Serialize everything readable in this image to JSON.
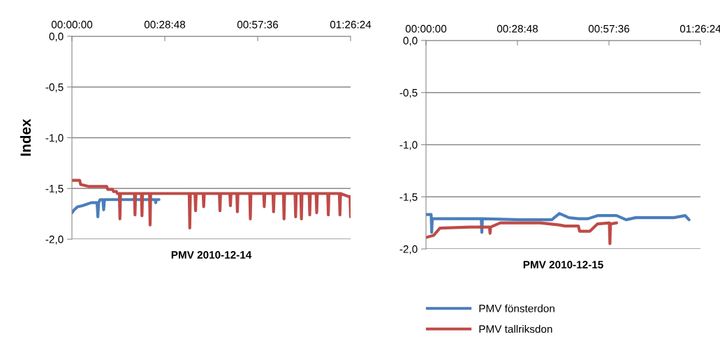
{
  "chart_data": [
    {
      "type": "line",
      "xlabel": "PMV 2010-12-14",
      "ylabel": "Index",
      "xlim": [
        0,
        1.44
      ],
      "ylim": [
        -2.0,
        0.0
      ],
      "xticks": [
        {
          "value": 0,
          "label": "00:00:00"
        },
        {
          "value": 0.48,
          "label": "00:28:48"
        },
        {
          "value": 0.96,
          "label": "00:57:36"
        },
        {
          "value": 1.44,
          "label": "01:26:24"
        }
      ],
      "yticks": [
        {
          "value": 0,
          "label": "0,0"
        },
        {
          "value": -0.5,
          "label": "-0,5"
        },
        {
          "value": -1.0,
          "label": "-1,0"
        },
        {
          "value": -1.5,
          "label": "-1,5"
        },
        {
          "value": -2.0,
          "label": "-2,0"
        }
      ],
      "grid": "y",
      "legend": false,
      "marker": "none",
      "line_style": "solid",
      "series": [
        {
          "color": "#4a7ebb",
          "x": [
            0,
            0.012,
            0.03,
            0.054,
            0.1,
            0.13,
            0.134,
            0.138,
            0.146,
            0.16,
            0.164,
            0.168,
            0.2,
            0.3,
            0.43,
            0.433,
            0.436,
            0.45
          ],
          "values": [
            -1.74,
            -1.71,
            -1.68,
            -1.67,
            -1.64,
            -1.64,
            -1.78,
            -1.64,
            -1.61,
            -1.61,
            -1.71,
            -1.61,
            -1.61,
            -1.61,
            -1.61,
            -1.64,
            -1.61,
            -1.61
          ]
        },
        {
          "color": "#be4b48",
          "x": [
            0,
            0.04,
            0.045,
            0.085,
            0.18,
            0.185,
            0.21,
            0.215,
            0.23,
            0.235,
            0.245,
            0.248,
            0.251,
            0.323,
            0.326,
            0.329,
            0.359,
            0.362,
            0.365,
            0.401,
            0.404,
            0.407,
            0.606,
            0.609,
            0.612,
            0.636,
            0.639,
            0.642,
            0.678,
            0.681,
            0.684,
            0.762,
            0.765,
            0.768,
            0.816,
            0.819,
            0.822,
            0.852,
            0.855,
            0.858,
            0.919,
            0.922,
            0.925,
            0.991,
            0.994,
            0.997,
            1.039,
            1.042,
            1.045,
            1.093,
            1.096,
            1.099,
            1.153,
            1.156,
            1.159,
            1.183,
            1.186,
            1.189,
            1.226,
            1.229,
            1.232,
            1.262,
            1.265,
            1.268,
            1.322,
            1.325,
            1.328,
            1.382,
            1.385,
            1.388,
            1.43,
            1.437,
            1.44
          ],
          "values": [
            -1.42,
            -1.42,
            -1.46,
            -1.48,
            -1.48,
            -1.51,
            -1.51,
            -1.53,
            -1.53,
            -1.55,
            -1.55,
            -1.8,
            -1.55,
            -1.55,
            -1.76,
            -1.55,
            -1.55,
            -1.77,
            -1.55,
            -1.55,
            -1.86,
            -1.55,
            -1.55,
            -1.89,
            -1.55,
            -1.55,
            -1.72,
            -1.55,
            -1.55,
            -1.68,
            -1.55,
            -1.55,
            -1.72,
            -1.55,
            -1.55,
            -1.67,
            -1.55,
            -1.55,
            -1.73,
            -1.55,
            -1.55,
            -1.8,
            -1.55,
            -1.55,
            -1.68,
            -1.55,
            -1.55,
            -1.73,
            -1.55,
            -1.55,
            -1.8,
            -1.55,
            -1.55,
            -1.78,
            -1.55,
            -1.55,
            -1.8,
            -1.55,
            -1.55,
            -1.76,
            -1.55,
            -1.55,
            -1.74,
            -1.55,
            -1.55,
            -1.76,
            -1.55,
            -1.55,
            -1.76,
            -1.55,
            -1.58,
            -1.58,
            -1.78
          ]
        }
      ]
    },
    {
      "type": "line",
      "xlabel": "PMV 2010-12-15",
      "xlim": [
        0,
        1.44
      ],
      "ylim": [
        -2.0,
        0.0
      ],
      "xticks": [
        {
          "value": 0,
          "label": "00:00:00"
        },
        {
          "value": 0.48,
          "label": "00:28:48"
        },
        {
          "value": 0.96,
          "label": "00:57:36"
        },
        {
          "value": 1.44,
          "label": "01:26:24"
        }
      ],
      "yticks": [
        {
          "value": 0,
          "label": "0,0"
        },
        {
          "value": -0.5,
          "label": "-0,5"
        },
        {
          "value": -1.0,
          "label": "-1,0"
        },
        {
          "value": -1.5,
          "label": "-1,5"
        },
        {
          "value": -2.0,
          "label": "-2,0"
        }
      ],
      "grid": "y",
      "legend": "bottom",
      "marker": "none",
      "line_style": "solid",
      "series": [
        {
          "name": "PMV fönsterdon",
          "color": "#4a7ebb",
          "x": [
            0,
            0.006,
            0.027,
            0.03,
            0.033,
            0.05,
            0.29,
            0.293,
            0.296,
            0.5,
            0.66,
            0.7,
            0.75,
            0.8,
            0.85,
            0.9,
            0.95,
            1.0,
            1.05,
            1.1,
            1.15,
            1.2,
            1.3,
            1.36,
            1.38
          ],
          "values": [
            -1.67,
            -1.67,
            -1.67,
            -1.84,
            -1.71,
            -1.71,
            -1.71,
            -1.84,
            -1.71,
            -1.72,
            -1.72,
            -1.66,
            -1.7,
            -1.71,
            -1.71,
            -1.68,
            -1.68,
            -1.68,
            -1.72,
            -1.7,
            -1.7,
            -1.7,
            -1.7,
            -1.68,
            -1.72
          ]
        },
        {
          "name": "PMV tallriksdon",
          "color": "#be4b48",
          "x": [
            0,
            0.04,
            0.073,
            0.23,
            0.333,
            0.336,
            0.339,
            0.39,
            0.6,
            0.7,
            0.73,
            0.8,
            0.806,
            0.86,
            0.9,
            0.962,
            0.965,
            0.968,
            1.0
          ],
          "values": [
            -1.89,
            -1.87,
            -1.8,
            -1.79,
            -1.79,
            -1.85,
            -1.79,
            -1.75,
            -1.75,
            -1.77,
            -1.78,
            -1.78,
            -1.83,
            -1.83,
            -1.76,
            -1.75,
            -1.95,
            -1.76,
            -1.75
          ]
        }
      ]
    }
  ]
}
